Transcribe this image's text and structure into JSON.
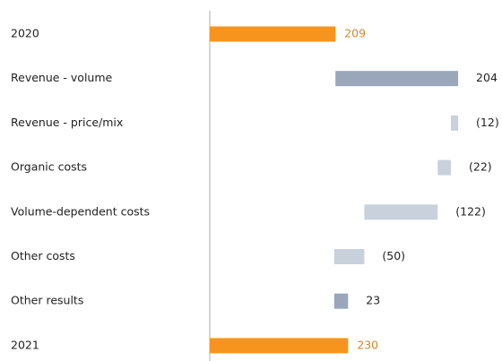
{
  "chart_data": {
    "type": "waterfall",
    "categories": [
      "2020",
      "Revenue - volume",
      "Revenue - price/mix",
      "Organic costs",
      "Volume-dependent costs",
      "Other costs",
      "Other results",
      "2021"
    ],
    "values": [
      209,
      204,
      -12,
      -22,
      -122,
      -50,
      23,
      230
    ],
    "value_labels": [
      "209",
      "204",
      "(12)",
      "(22)",
      "(122)",
      "(50)",
      "23",
      "230"
    ],
    "colors": [
      "#f7941d",
      "#9aa6ba",
      "#c9d1dc",
      "#c9d1dc",
      "#c9d1dc",
      "#c9d1dc",
      "#9aa6ba",
      "#f7941d"
    ],
    "total_label_color": "#d4862c",
    "xlim": [
      0,
      480
    ]
  }
}
